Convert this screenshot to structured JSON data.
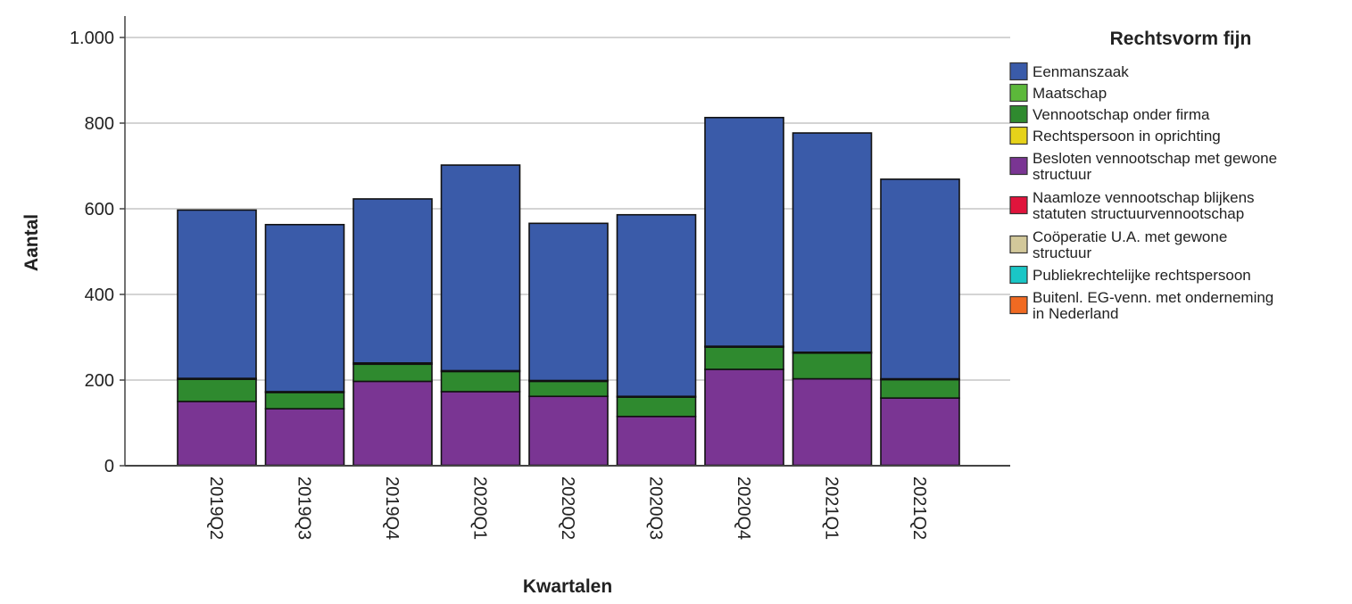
{
  "chart_data": {
    "type": "bar",
    "stacked": true,
    "title": "",
    "xlabel": "Kwartalen",
    "ylabel": "Aantal",
    "ylim": [
      0,
      1050
    ],
    "yticks": [
      0,
      200,
      400,
      600,
      800,
      1000
    ],
    "ytick_labels": [
      "0",
      "200",
      "400",
      "600",
      "800",
      "1.000"
    ],
    "grid": true,
    "legend_position": "right",
    "legend_title": "Rechtsvorm fijn",
    "categories": [
      "2019Q2",
      "2019Q3",
      "2019Q4",
      "2020Q1",
      "2020Q2",
      "2020Q3",
      "2020Q4",
      "2021Q1",
      "2021Q2"
    ],
    "series": [
      {
        "name": "Eenmanszaak",
        "color": "#3a5ba9",
        "values": [
          393,
          390,
          383,
          480,
          367,
          424,
          534,
          512,
          466
        ]
      },
      {
        "name": "Maatschap",
        "color": "#5cb83a",
        "values": [
          2,
          2,
          3,
          2,
          2,
          2,
          2,
          2,
          2
        ]
      },
      {
        "name": "Vennootschap onder firma",
        "color": "#2f8a2f",
        "values": [
          52,
          38,
          40,
          47,
          35,
          45,
          52,
          60,
          43
        ]
      },
      {
        "name": "Rechtspersoon in oprichting",
        "color": "#e6d21a",
        "values": [
          0,
          0,
          0,
          0,
          0,
          0,
          0,
          0,
          0
        ]
      },
      {
        "name": "Besloten vennootschap met gewone structuur",
        "color": "#7a3593",
        "values": [
          149,
          132,
          196,
          172,
          161,
          114,
          224,
          202,
          157
        ]
      },
      {
        "name": "Naamloze vennootschap blijkens statuten structuurvennootschap",
        "color": "#e0143c",
        "values": [
          0,
          0,
          0,
          0,
          0,
          0,
          0,
          0,
          0
        ]
      },
      {
        "name": "Coöperatie U.A. met gewone structuur",
        "color": "#d2c89a",
        "values": [
          1,
          1,
          1,
          1,
          1,
          1,
          1,
          1,
          1
        ]
      },
      {
        "name": "Publiekrechtelijke rechtspersoon",
        "color": "#1ac6c6",
        "values": [
          0,
          0,
          0,
          0,
          0,
          0,
          0,
          0,
          0
        ]
      },
      {
        "name": "Buitenl. EG-venn. met onderneming in Nederland",
        "color": "#f06a22",
        "values": [
          0,
          0,
          0,
          0,
          0,
          0,
          0,
          0,
          0
        ]
      }
    ],
    "legend_lines": [
      [
        "Eenmanszaak"
      ],
      [
        "Maatschap"
      ],
      [
        "Vennootschap onder firma"
      ],
      [
        "Rechtspersoon in oprichting"
      ],
      [
        "Besloten vennootschap met gewone",
        "structuur"
      ],
      [
        "Naamloze vennootschap blijkens",
        "statuten structuurvennootschap"
      ],
      [
        "Coöperatie U.A. met gewone",
        "structuur"
      ],
      [
        "Publiekrechtelijke rechtspersoon"
      ],
      [
        "Buitenl. EG-venn. met onderneming",
        "in Nederland"
      ]
    ]
  }
}
